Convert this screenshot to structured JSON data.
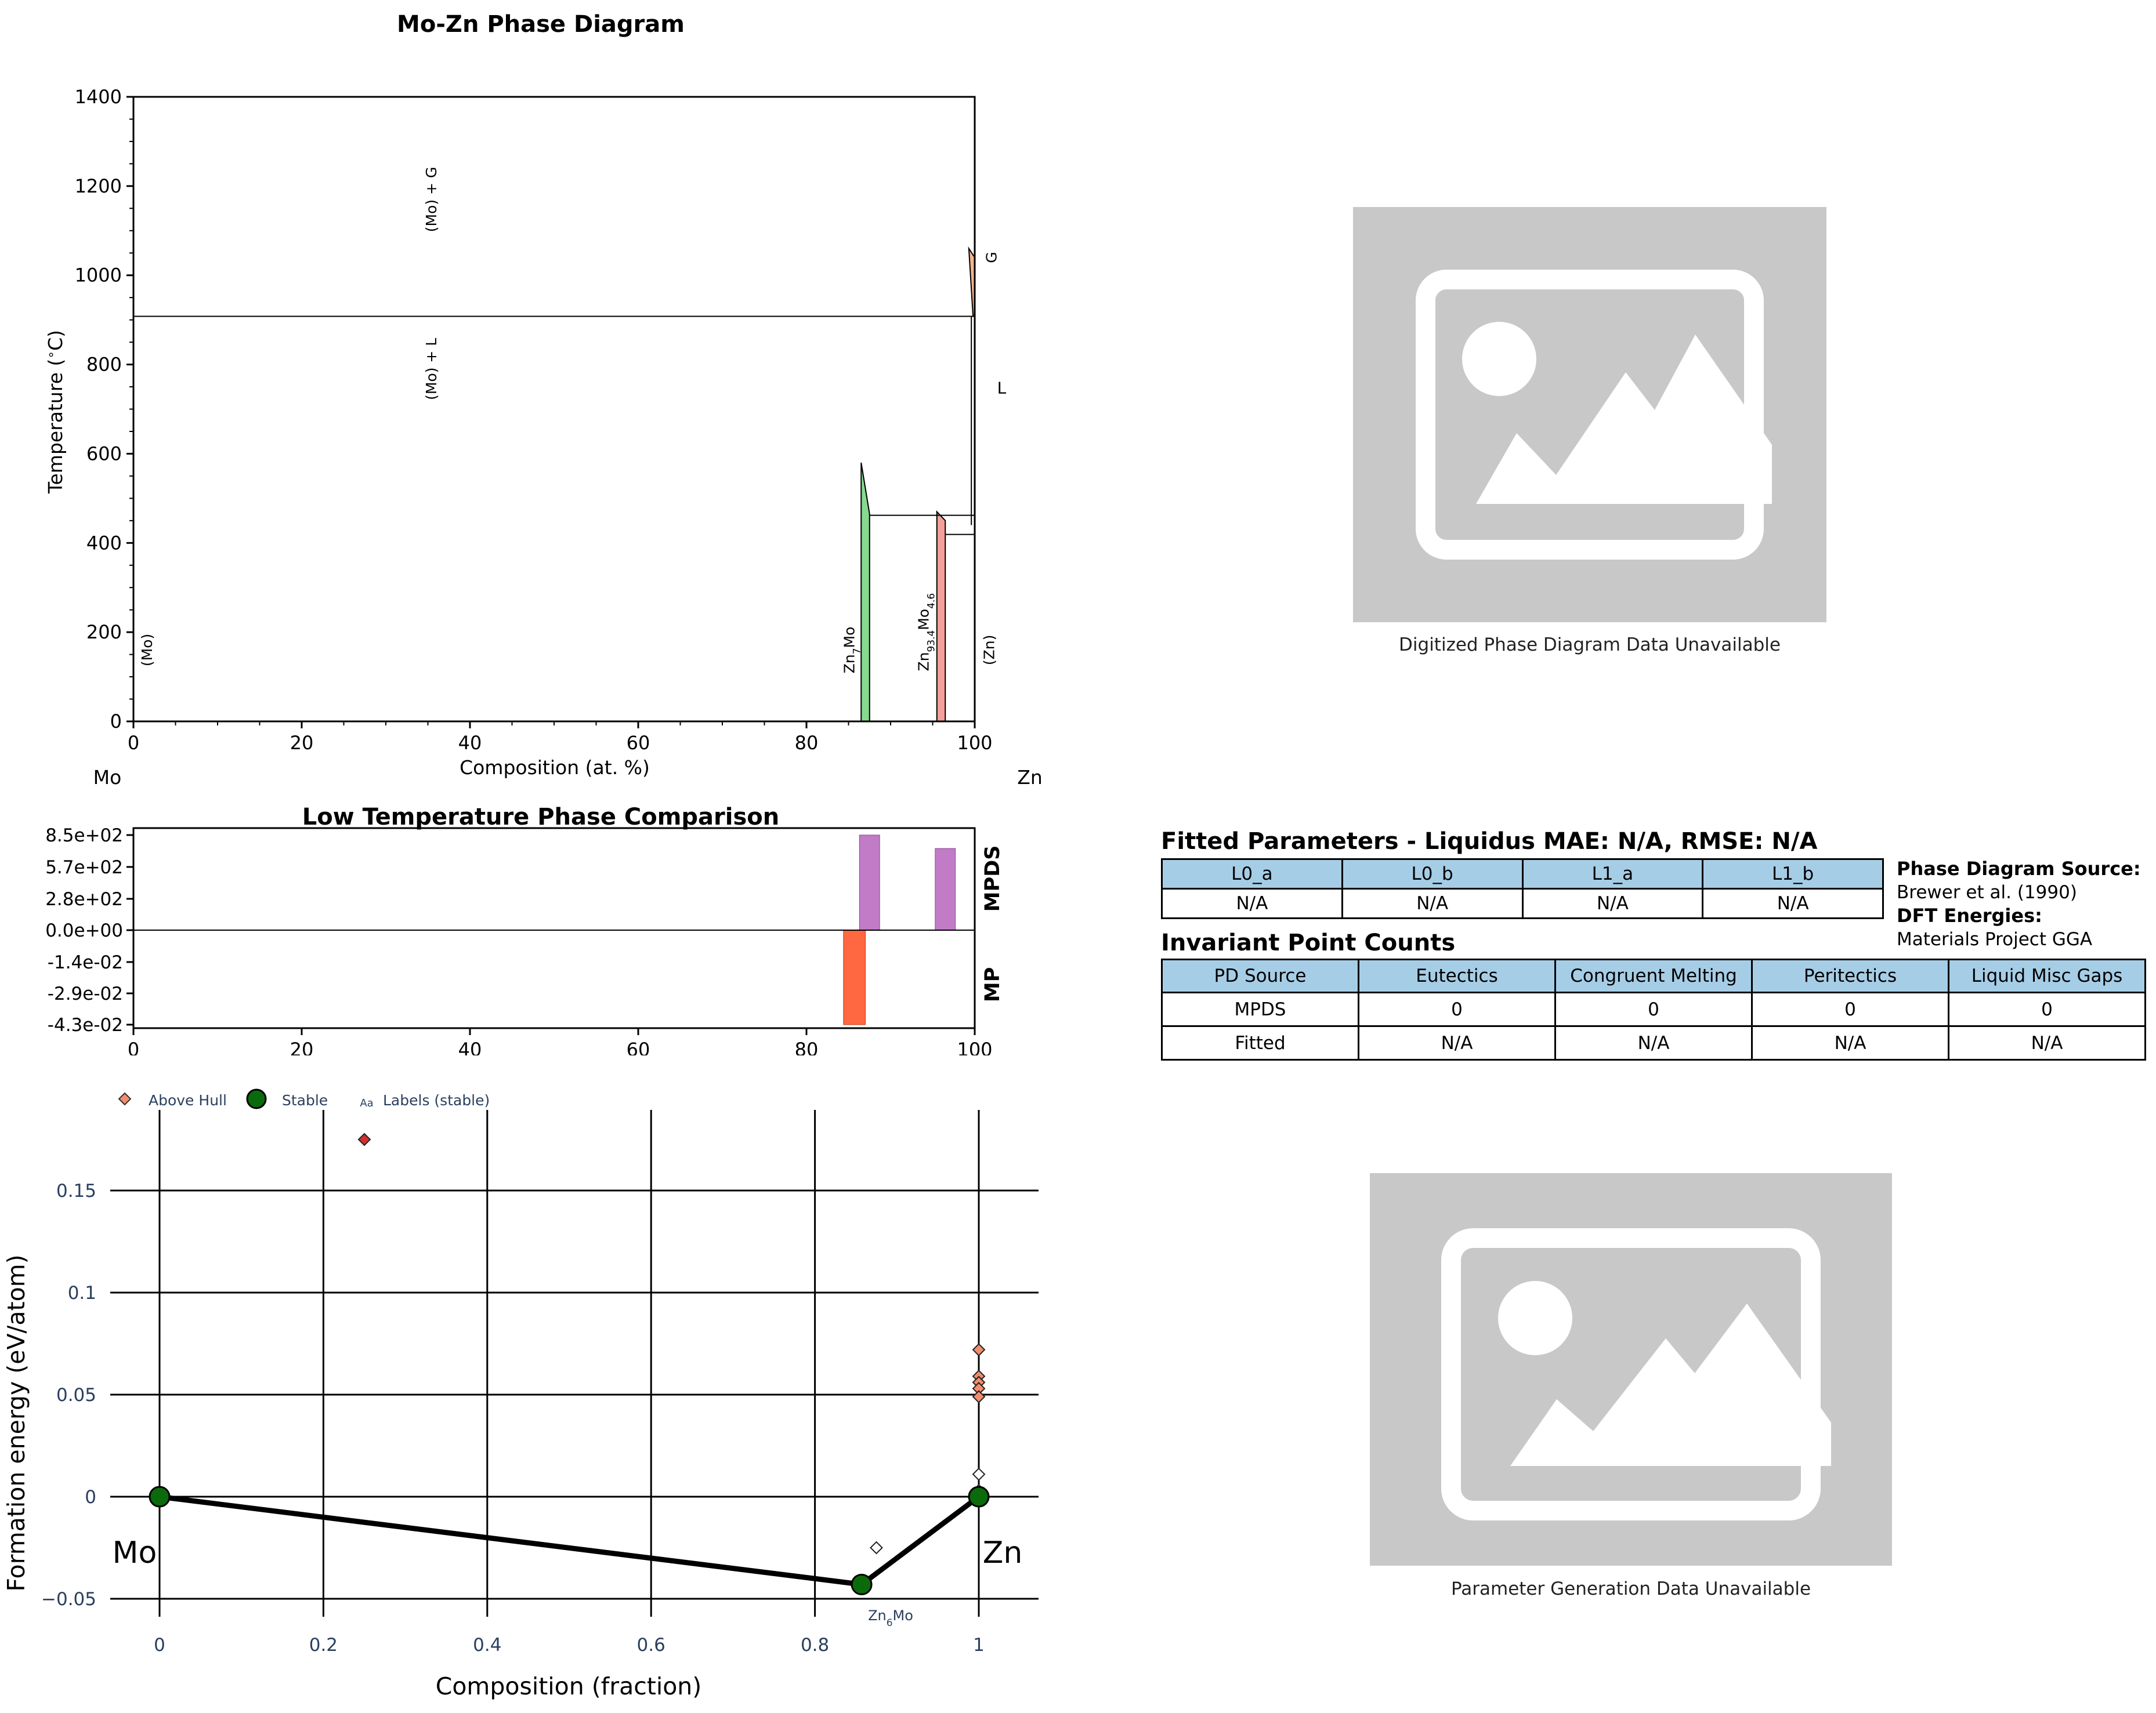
{
  "phase_diagram": {
    "title": "Mo-Zn Phase Diagram",
    "xlabel": "Composition (at. %)",
    "ylabel": "Temperature ( C)",
    "left_element": "Mo",
    "right_element": "Zn",
    "x_ticks": [
      "0",
      "20",
      "40",
      "60",
      "80",
      "100"
    ],
    "y_ticks": [
      "0",
      "200",
      "400",
      "600",
      "800",
      "1000",
      "1200",
      "1400"
    ],
    "region_labels": [
      "(Mo) + G",
      "(Mo) + L",
      "G",
      "L",
      "(Mo)",
      "(Zn)"
    ],
    "phase_labels": {
      "zn7mo": "Zn7Mo",
      "zn93mo": "Zn93.4Mo4.6"
    },
    "colors": {
      "zn7mo": "#86d98e",
      "zn93mo": "#f4a09a",
      "gas": "#f7b58a"
    }
  },
  "comparison_chart": {
    "title": "Low Temperature Phase Comparison",
    "y_ticks": [
      "8.5e+02",
      "5.7e+02",
      "2.8e+02",
      "0.0e+00",
      "-1.4e-02",
      "-2.9e-02",
      "-4.3e-02"
    ],
    "x_ticks": [
      "0",
      "20",
      "40",
      "60",
      "80",
      "100"
    ],
    "mpds_label": "MPDS",
    "mp_label": "MP",
    "colors": {
      "mpds": "#c27bc7",
      "mp": "#ff6841"
    }
  },
  "hull_chart": {
    "xlabel": "Composition (fraction)",
    "ylabel": "Formation energy (eV/atom)",
    "x_ticks": [
      "0",
      "0.2",
      "0.4",
      "0.6",
      "0.8",
      "1"
    ],
    "y_ticks": [
      "0.15",
      "0.1",
      "0.05",
      "0",
      "−0.05"
    ],
    "legend": {
      "above_hull": "Above Hull",
      "stable": "Stable",
      "labels": "Labels (stable)",
      "labels_glyph": "Aa"
    },
    "endpoint_labels": {
      "left": "Mo",
      "right": "Zn"
    },
    "compound_label": "Zn6Mo",
    "colors": {
      "stable": "#0b6a0b",
      "above_hull": "#f28c6e",
      "axis_text": "#2a3f5f"
    }
  },
  "placeholders": {
    "top_caption": "Digitized Phase Diagram Data Unavailable",
    "bottom_caption": "Parameter Generation Data Unavailable"
  },
  "fitted_params": {
    "title": "Fitted Parameters - Liquidus MAE: N/A, RMSE: N/A",
    "headers": [
      "L0_a",
      "L0_b",
      "L1_a",
      "L1_b"
    ],
    "values": [
      "N/A",
      "N/A",
      "N/A",
      "N/A"
    ]
  },
  "invariant_counts": {
    "title": "Invariant Point Counts",
    "headers": [
      "PD Source",
      "Eutectics",
      "Congruent Melting",
      "Peritectics",
      "Liquid Misc Gaps"
    ],
    "rows": [
      [
        "MPDS",
        "0",
        "0",
        "0",
        "0"
      ],
      [
        "Fitted",
        "N/A",
        "N/A",
        "N/A",
        "N/A"
      ]
    ]
  },
  "sources": {
    "pd_source_label": "Phase Diagram Source:",
    "pd_source_value": "Brewer et al. (1990)",
    "dft_label": "DFT Energies:",
    "dft_value": "Materials Project GGA"
  },
  "chart_data": [
    {
      "type": "phase_diagram",
      "title": "Mo-Zn Phase Diagram",
      "xlabel": "Composition (at. %)",
      "ylabel": "Temperature ( C)",
      "xlim": [
        0,
        100
      ],
      "ylim": [
        0,
        1400
      ],
      "horizontal_lines": [
        {
          "y": 908,
          "x": [
            0,
            100
          ]
        },
        {
          "y": 462,
          "x": [
            87.5,
            100
          ]
        },
        {
          "y": 419,
          "x": [
            96.5,
            100
          ]
        }
      ],
      "phases": [
        {
          "name": "Zn7Mo",
          "x": [
            86.5,
            87.5
          ],
          "peak_T": 580,
          "peak_x": 86.5
        },
        {
          "name": "Zn93.4Mo4.6",
          "x": [
            95.5,
            96.5
          ],
          "peak_T": 470,
          "peak_x": 95.5
        },
        {
          "name": "G",
          "x": [
            99.3,
            100
          ],
          "T_range": [
            908,
            1060
          ]
        }
      ],
      "regions": [
        "(Mo) + G",
        "(Mo) + L",
        "G",
        "L",
        "(Mo)",
        "(Zn)"
      ]
    },
    {
      "type": "bar",
      "title": "Low Temperature Phase Comparison",
      "xlim": [
        0,
        100
      ],
      "series": [
        {
          "name": "MPDS",
          "x": [
            87.5,
            96.5
          ],
          "values": [
            850,
            730
          ]
        },
        {
          "name": "MP",
          "x": [
            85.7
          ],
          "values": [
            -0.043
          ]
        }
      ]
    },
    {
      "type": "scatter",
      "xlabel": "Composition (fraction)",
      "ylabel": "Formation energy (eV/atom)",
      "xlim": [
        -0.03,
        1.07
      ],
      "ylim": [
        -0.062,
        0.19
      ],
      "series": [
        {
          "name": "Stable",
          "points": [
            [
              0,
              0
            ],
            [
              0.857,
              -0.043
            ],
            [
              1,
              0
            ]
          ]
        },
        {
          "name": "Above Hull",
          "points": [
            [
              0.25,
              0.175
            ],
            [
              1,
              0.072
            ],
            [
              1,
              0.059
            ],
            [
              1,
              0.056
            ],
            [
              1,
              0.053
            ],
            [
              1,
              0.049
            ],
            [
              1,
              0.011
            ],
            [
              0.875,
              -0.025
            ],
            [
              1,
              0.003
            ]
          ]
        }
      ],
      "hull": [
        [
          0,
          0
        ],
        [
          0.857,
          -0.043
        ],
        [
          1,
          0
        ]
      ]
    }
  ]
}
